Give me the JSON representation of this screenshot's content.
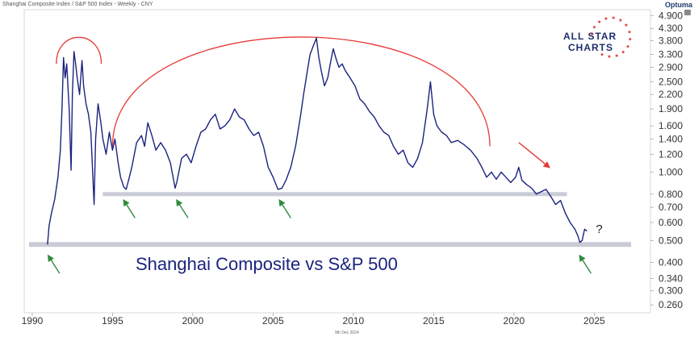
{
  "header": {
    "source_title": "Shanghai Composite Index / S&P 500 Index - Weekly - CNY",
    "provider": "Optuma",
    "footer_date": "9th Dec 2024"
  },
  "brand": {
    "line1": "ALL STAR",
    "line2": "CHARTS"
  },
  "chart_data": {
    "type": "line",
    "title": "Shanghai Composite vs S&P 500",
    "yscale": "log",
    "ylim": [
      0.24,
      5.2
    ],
    "xlim": [
      1989.5,
      2028.5
    ],
    "x_ticks": [
      "1990",
      "1995",
      "2000",
      "2005",
      "2010",
      "2015",
      "2020",
      "2025"
    ],
    "y_ticks": [
      "4.900",
      "4.300",
      "3.800",
      "3.300",
      "2.900",
      "2.500",
      "2.200",
      "1.900",
      "1.600",
      "1.400",
      "1.200",
      "1.000",
      "0.800",
      "0.700",
      "0.600",
      "0.500",
      "0.400",
      "0.340",
      "0.300",
      "0.260"
    ],
    "series": [
      {
        "color": "#1a237e",
        "points": [
          [
            1990.95,
            0.48
          ],
          [
            1991.05,
            0.58
          ],
          [
            1991.2,
            0.66
          ],
          [
            1991.4,
            0.76
          ],
          [
            1991.6,
            0.95
          ],
          [
            1991.75,
            1.25
          ],
          [
            1991.85,
            1.9
          ],
          [
            1991.95,
            3.2
          ],
          [
            1992.05,
            2.6
          ],
          [
            1992.15,
            3.0
          ],
          [
            1992.3,
            1.9
          ],
          [
            1992.42,
            1.02
          ],
          [
            1992.5,
            2.2
          ],
          [
            1992.6,
            3.4
          ],
          [
            1992.7,
            3.0
          ],
          [
            1992.8,
            2.6
          ],
          [
            1992.95,
            2.2
          ],
          [
            1993.1,
            3.1
          ],
          [
            1993.2,
            2.4
          ],
          [
            1993.35,
            2.0
          ],
          [
            1993.5,
            1.8
          ],
          [
            1993.65,
            1.5
          ],
          [
            1993.85,
            0.72
          ],
          [
            1993.95,
            1.4
          ],
          [
            1994.1,
            2.0
          ],
          [
            1994.25,
            1.7
          ],
          [
            1994.4,
            1.4
          ],
          [
            1994.6,
            1.2
          ],
          [
            1994.8,
            1.5
          ],
          [
            1995.0,
            1.25
          ],
          [
            1995.15,
            1.4
          ],
          [
            1995.35,
            1.1
          ],
          [
            1995.5,
            0.95
          ],
          [
            1995.7,
            0.86
          ],
          [
            1995.85,
            0.84
          ],
          [
            1996.0,
            0.92
          ],
          [
            1996.2,
            1.05
          ],
          [
            1996.5,
            1.35
          ],
          [
            1996.8,
            1.45
          ],
          [
            1997.0,
            1.3
          ],
          [
            1997.2,
            1.65
          ],
          [
            1997.45,
            1.45
          ],
          [
            1997.7,
            1.25
          ],
          [
            1998.0,
            1.35
          ],
          [
            1998.3,
            1.25
          ],
          [
            1998.6,
            1.1
          ],
          [
            1998.9,
            0.85
          ],
          [
            1999.0,
            0.9
          ],
          [
            1999.3,
            1.15
          ],
          [
            1999.6,
            1.2
          ],
          [
            1999.9,
            1.1
          ],
          [
            2000.2,
            1.3
          ],
          [
            2000.5,
            1.5
          ],
          [
            2000.8,
            1.55
          ],
          [
            2001.1,
            1.7
          ],
          [
            2001.4,
            1.8
          ],
          [
            2001.7,
            1.55
          ],
          [
            2002.0,
            1.6
          ],
          [
            2002.3,
            1.7
          ],
          [
            2002.6,
            1.9
          ],
          [
            2002.9,
            1.75
          ],
          [
            2003.2,
            1.7
          ],
          [
            2003.5,
            1.55
          ],
          [
            2003.8,
            1.45
          ],
          [
            2004.1,
            1.5
          ],
          [
            2004.4,
            1.3
          ],
          [
            2004.7,
            1.05
          ],
          [
            2005.0,
            0.95
          ],
          [
            2005.3,
            0.84
          ],
          [
            2005.55,
            0.85
          ],
          [
            2005.8,
            0.92
          ],
          [
            2006.1,
            1.05
          ],
          [
            2006.4,
            1.3
          ],
          [
            2006.7,
            1.75
          ],
          [
            2006.9,
            2.2
          ],
          [
            2007.1,
            2.7
          ],
          [
            2007.3,
            3.3
          ],
          [
            2007.5,
            3.6
          ],
          [
            2007.7,
            3.9
          ],
          [
            2007.85,
            3.2
          ],
          [
            2008.0,
            2.8
          ],
          [
            2008.2,
            2.4
          ],
          [
            2008.4,
            2.6
          ],
          [
            2008.6,
            3.1
          ],
          [
            2008.75,
            3.5
          ],
          [
            2008.9,
            3.2
          ],
          [
            2009.1,
            2.9
          ],
          [
            2009.3,
            3.0
          ],
          [
            2009.5,
            2.8
          ],
          [
            2009.8,
            2.6
          ],
          [
            2010.1,
            2.4
          ],
          [
            2010.4,
            2.1
          ],
          [
            2010.7,
            2.0
          ],
          [
            2011.0,
            1.85
          ],
          [
            2011.3,
            1.75
          ],
          [
            2011.6,
            1.6
          ],
          [
            2011.9,
            1.5
          ],
          [
            2012.2,
            1.45
          ],
          [
            2012.5,
            1.3
          ],
          [
            2012.8,
            1.2
          ],
          [
            2013.1,
            1.25
          ],
          [
            2013.4,
            1.1
          ],
          [
            2013.7,
            1.05
          ],
          [
            2014.0,
            1.15
          ],
          [
            2014.3,
            1.35
          ],
          [
            2014.6,
            1.9
          ],
          [
            2014.8,
            2.5
          ],
          [
            2015.0,
            1.8
          ],
          [
            2015.2,
            1.6
          ],
          [
            2015.5,
            1.5
          ],
          [
            2015.8,
            1.45
          ],
          [
            2016.1,
            1.35
          ],
          [
            2016.5,
            1.38
          ],
          [
            2016.9,
            1.32
          ],
          [
            2017.3,
            1.25
          ],
          [
            2017.7,
            1.15
          ],
          [
            2018.0,
            1.05
          ],
          [
            2018.3,
            0.95
          ],
          [
            2018.6,
            1.0
          ],
          [
            2018.9,
            0.93
          ],
          [
            2019.2,
            1.0
          ],
          [
            2019.5,
            0.95
          ],
          [
            2019.8,
            0.9
          ],
          [
            2020.1,
            0.95
          ],
          [
            2020.3,
            1.05
          ],
          [
            2020.5,
            0.92
          ],
          [
            2020.8,
            0.88
          ],
          [
            2021.1,
            0.85
          ],
          [
            2021.4,
            0.8
          ],
          [
            2021.7,
            0.82
          ],
          [
            2022.0,
            0.84
          ],
          [
            2022.3,
            0.78
          ],
          [
            2022.6,
            0.72
          ],
          [
            2022.9,
            0.75
          ],
          [
            2023.2,
            0.66
          ],
          [
            2023.5,
            0.6
          ],
          [
            2023.8,
            0.56
          ],
          [
            2024.0,
            0.52
          ],
          [
            2024.1,
            0.49
          ],
          [
            2024.25,
            0.5
          ],
          [
            2024.4,
            0.56
          ],
          [
            2024.55,
            0.55
          ]
        ]
      }
    ],
    "annotations": {
      "title_text": "Shanghai Composite vs S&P 500",
      "question_mark": "?",
      "support_levels": [
        0.8,
        0.48
      ],
      "red_arc_small": {
        "x0": 1991.5,
        "x1": 1994.3,
        "peak_y": 4.1
      },
      "red_arc_large": {
        "x0": 1995.0,
        "x1": 2018.5,
        "peak_y": 4.7
      },
      "red_arrow": {
        "from": [
          2020.3,
          1.35
        ],
        "to": [
          2022.2,
          1.05
        ]
      },
      "green_arrows": [
        {
          "x": 1991.0,
          "y": 0.45
        },
        {
          "x": 1995.7,
          "y": 0.79
        },
        {
          "x": 1999.0,
          "y": 0.79
        },
        {
          "x": 2005.4,
          "y": 0.79
        },
        {
          "x": 2024.1,
          "y": 0.45
        }
      ],
      "colors": {
        "line": "#1a237e",
        "arc": "#e53935",
        "arrow_green": "#2e8b3a",
        "support": "#c9ccd6",
        "axis_text": "#333333"
      }
    }
  }
}
